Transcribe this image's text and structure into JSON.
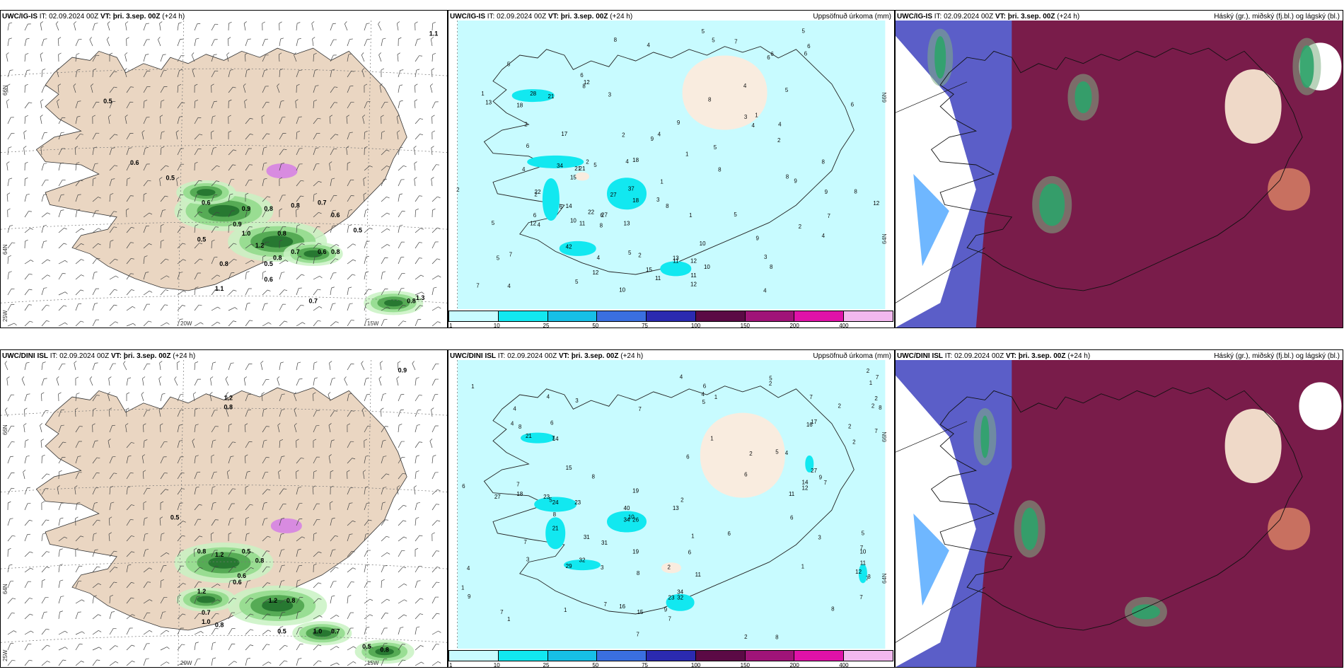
{
  "panels": [
    {
      "model": "UWC/IG-IS",
      "it_label": "IT:",
      "it": "02.09.2024 00Z",
      "vt_label": "VT:",
      "vt": "þri. 3.sep. 00Z",
      "lead": "(+24 h)",
      "right_title": "",
      "type": "wind"
    },
    {
      "model": "UWC/IG-IS",
      "it_label": "IT:",
      "it": "02.09.2024 00Z",
      "vt_label": "VT:",
      "vt": "þri. 3.sep. 00Z",
      "lead": "(+24 h)",
      "right_title": "Uppsöfnuð úrkoma (mm)",
      "type": "precip"
    },
    {
      "model": "UWC/IG-IS",
      "it_label": "IT:",
      "it": "02.09.2024 00Z",
      "vt_label": "VT:",
      "vt": "þri. 3.sep. 00Z",
      "lead": "(+24 h)",
      "right_title": "Háský (gr.), miðský (fj.bl.) og lágský (bl.)",
      "type": "cloud"
    },
    {
      "model": "UWC/DINI ISL",
      "it_label": "IT:",
      "it": "02.09.2024 00Z",
      "vt_label": "VT:",
      "vt": "þri. 3.sep. 00Z",
      "lead": "(+24 h)",
      "right_title": "",
      "type": "wind"
    },
    {
      "model": "UWC/DINI ISL",
      "it_label": "IT:",
      "it": "02.09.2024 00Z",
      "vt_label": "VT:",
      "vt": "þri. 3.sep. 00Z",
      "lead": "(+24 h)",
      "right_title": "Uppsöfnuð úrkoma (mm)",
      "type": "precip"
    },
    {
      "model": "UWC/DINI ISL",
      "it_label": "IT:",
      "it": "02.09.2024 00Z",
      "vt_label": "VT:",
      "vt": "þri. 3.sep. 00Z",
      "lead": "(+24 h)",
      "right_title": "Háský (gr.), miðský (fj.bl.) og lágský (bl.)",
      "type": "cloud"
    }
  ],
  "axis_labels": {
    "lat_66": "66N",
    "lat_64": "64N",
    "lon_25w": "25W",
    "lon_20w": "20W",
    "lon_15w": "15W"
  },
  "colorbar": {
    "ticks": [
      "1",
      "10",
      "25",
      "50",
      "75",
      "100",
      "150",
      "200",
      "400"
    ],
    "colors": [
      "#c8fbff",
      "#12e8f0",
      "#17bfe6",
      "#3a6fe0",
      "#2b2ab0",
      "#5b0a45",
      "#a01478",
      "#e012a8",
      "#f2b8ee"
    ]
  },
  "precip_labels": {
    "top": [
      "28",
      "21",
      "18",
      "13",
      "34",
      "22",
      "21",
      "21",
      "15",
      "18",
      "37",
      "27",
      "22",
      "27",
      "18",
      "12",
      "14",
      "10",
      "42",
      "13",
      "12",
      "11",
      "10",
      "12",
      "13",
      "15",
      "11",
      "12",
      "11",
      "10",
      "17",
      "12",
      "10",
      "11",
      "12"
    ],
    "bottom": [
      "21",
      "14",
      "15",
      "27",
      "18",
      "23",
      "24",
      "23",
      "19",
      "26",
      "34",
      "10",
      "40",
      "21",
      "31",
      "31",
      "19",
      "29",
      "32",
      "23",
      "34",
      "32",
      "16",
      "15",
      "11",
      "17",
      "16",
      "27",
      "14",
      "12",
      "11",
      "11",
      "12",
      "10",
      "13"
    ]
  },
  "wind_labels": {
    "top": [
      "0.5",
      "0.6",
      "0.5",
      "0.6",
      "0.9",
      "1.0",
      "0.8",
      "0.8",
      "0.8",
      "0.9",
      "1.2",
      "0.8",
      "0.5",
      "0.7",
      "0.8",
      "0.5",
      "0.6",
      "0.6",
      "0.7",
      "0.8",
      "0.6",
      "0.5",
      "1.1",
      "0.7",
      "0.8",
      "1.3",
      "1.1"
    ],
    "bottom": [
      "1.2",
      "0.8",
      "0.5",
      "0.8",
      "1.2",
      "0.5",
      "0.6",
      "0.8",
      "0.6",
      "1.2",
      "0.7",
      "1.0",
      "0.8",
      "0.8",
      "1.2",
      "0.5",
      "1.0",
      "0.7",
      "0.5",
      "0.8",
      "0.9"
    ]
  },
  "colors": {
    "land": "#ead6c2",
    "precip_base": "#c8fbff",
    "cloud_high": "#7b1843",
    "cloud_mid": "#5b5ec8",
    "cloud_low": "#2ea36a"
  }
}
